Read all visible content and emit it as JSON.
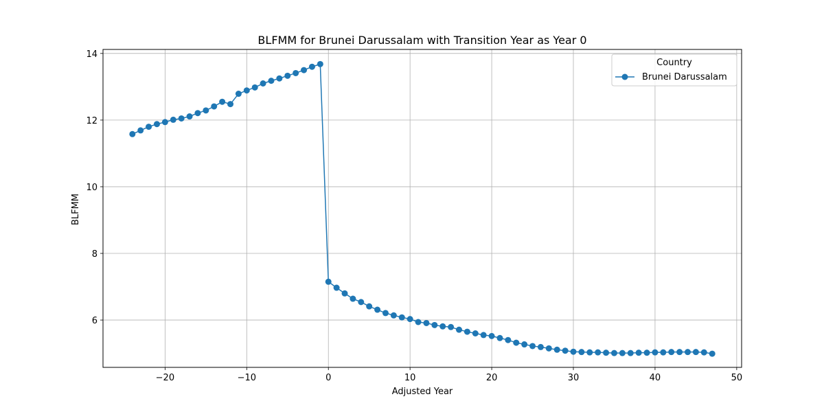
{
  "chart_data": {
    "type": "line",
    "title": "BLFMM for Brunei Darussalam with Transition Year as Year 0",
    "xlabel": "Adjusted Year",
    "ylabel": "BLFMM",
    "xlim": [
      -27.6,
      50.6
    ],
    "ylim": [
      4.58,
      14.12
    ],
    "xticks": [
      -20,
      -10,
      0,
      10,
      20,
      30,
      40,
      50
    ],
    "xtick_labels": [
      "−20",
      "−10",
      "0",
      "10",
      "20",
      "30",
      "40",
      "50"
    ],
    "yticks": [
      6,
      8,
      10,
      12,
      14
    ],
    "ytick_labels": [
      "6",
      "8",
      "10",
      "12",
      "14"
    ],
    "grid": true,
    "legend": {
      "title": "Country",
      "placement": "top-right"
    },
    "series": [
      {
        "name": "Brunei Darussalam",
        "color": "#1f77b4",
        "marker": "circle",
        "x": [
          -24,
          -23,
          -22,
          -21,
          -20,
          -19,
          -18,
          -17,
          -16,
          -15,
          -14,
          -13,
          -12,
          -11,
          -10,
          -9,
          -8,
          -7,
          -6,
          -5,
          -4,
          -3,
          -2,
          -1,
          0,
          1,
          2,
          3,
          4,
          5,
          6,
          7,
          8,
          9,
          10,
          11,
          12,
          13,
          14,
          15,
          16,
          17,
          18,
          19,
          20,
          21,
          22,
          23,
          24,
          25,
          26,
          27,
          28,
          29,
          30,
          31,
          32,
          33,
          34,
          35,
          36,
          37,
          38,
          39,
          40,
          41,
          42,
          43,
          44,
          45,
          46,
          47
        ],
        "y": [
          11.58,
          11.69,
          11.8,
          11.88,
          11.94,
          12.01,
          12.05,
          12.11,
          12.21,
          12.29,
          12.41,
          12.55,
          12.48,
          12.79,
          12.89,
          12.98,
          13.1,
          13.18,
          13.25,
          13.33,
          13.41,
          13.5,
          13.6,
          13.68,
          7.15,
          6.97,
          6.8,
          6.64,
          6.54,
          6.41,
          6.31,
          6.21,
          6.14,
          6.08,
          6.03,
          5.94,
          5.91,
          5.85,
          5.81,
          5.79,
          5.71,
          5.65,
          5.6,
          5.55,
          5.52,
          5.46,
          5.4,
          5.32,
          5.27,
          5.22,
          5.19,
          5.15,
          5.11,
          5.08,
          5.05,
          5.04,
          5.03,
          5.03,
          5.02,
          5.01,
          5.01,
          5.01,
          5.02,
          5.02,
          5.03,
          5.03,
          5.04,
          5.04,
          5.04,
          5.04,
          5.03,
          4.99
        ]
      }
    ]
  }
}
